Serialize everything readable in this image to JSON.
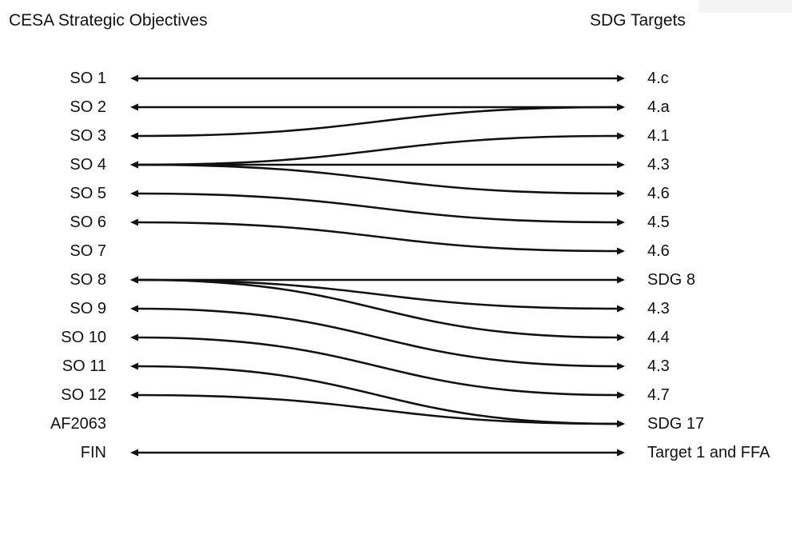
{
  "headers": {
    "left": "CESA Strategic Objectives",
    "right": "SDG Targets"
  },
  "objectives": [
    "SO 1",
    "SO 2",
    "SO 3",
    "SO 4",
    "SO 5",
    "SO 6",
    "SO 7",
    "SO 8",
    "SO 9",
    "SO 10",
    "SO 11",
    "SO 12",
    "AF2063",
    "FIN"
  ],
  "targets": [
    "4.c",
    "4.a",
    "4.1",
    "4.3",
    "4.6",
    "4.5",
    "4.6",
    "SDG 8",
    "4.3",
    "4.4",
    "4.3",
    "4.7",
    "SDG 17",
    "Target 1 and FFA"
  ],
  "links": [
    {
      "from": "SO 1",
      "to": "4.c",
      "from_index": 0,
      "to_index": 0
    },
    {
      "from": "SO 2",
      "to": "4.a",
      "from_index": 1,
      "to_index": 1
    },
    {
      "from": "SO 3",
      "to": "4.a",
      "from_index": 2,
      "to_index": 1
    },
    {
      "from": "SO 4",
      "to": "4.1",
      "from_index": 3,
      "to_index": 2
    },
    {
      "from": "SO 4",
      "to": "4.3",
      "from_index": 3,
      "to_index": 3
    },
    {
      "from": "SO 4",
      "to": "4.6",
      "from_index": 3,
      "to_index": 4
    },
    {
      "from": "SO 5",
      "to": "4.5",
      "from_index": 4,
      "to_index": 5
    },
    {
      "from": "SO 6",
      "to": "4.6",
      "from_index": 5,
      "to_index": 6
    },
    {
      "from": "SO 8",
      "to": "SDG 8",
      "from_index": 7,
      "to_index": 7
    },
    {
      "from": "SO 8",
      "to": "4.3",
      "from_index": 7,
      "to_index": 8
    },
    {
      "from": "SO 8",
      "to": "4.4",
      "from_index": 7,
      "to_index": 9
    },
    {
      "from": "SO 9",
      "to": "4.3",
      "from_index": 8,
      "to_index": 10
    },
    {
      "from": "SO 10",
      "to": "4.7",
      "from_index": 9,
      "to_index": 11
    },
    {
      "from": "SO 11",
      "to": "SDG 17",
      "from_index": 10,
      "to_index": 12
    },
    {
      "from": "SO 12",
      "to": "SDG 17",
      "from_index": 11,
      "to_index": 12
    },
    {
      "from": "FIN",
      "to": "Target 1 and FFA",
      "from_index": 13,
      "to_index": 13
    }
  ]
}
